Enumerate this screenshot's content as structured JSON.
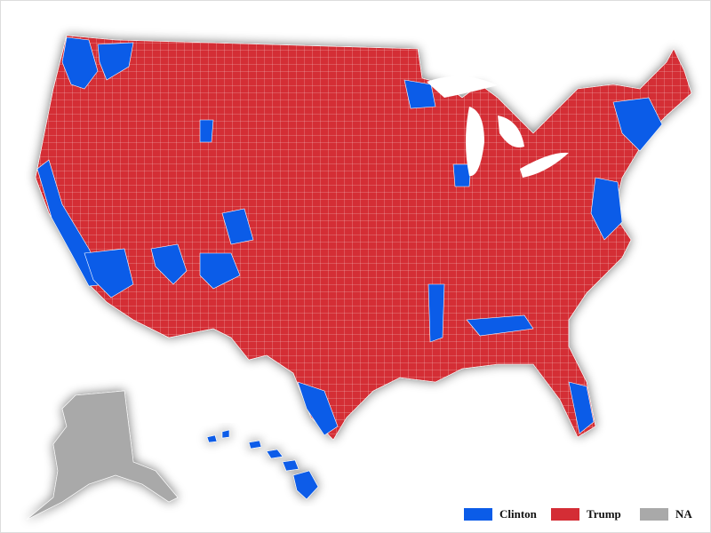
{
  "legend": [
    {
      "label": "Clinton",
      "color": "#0b5ce8"
    },
    {
      "label": "Trump",
      "color": "#d42d35"
    },
    {
      "label": "NA",
      "color": "#a9a9a9"
    }
  ]
}
